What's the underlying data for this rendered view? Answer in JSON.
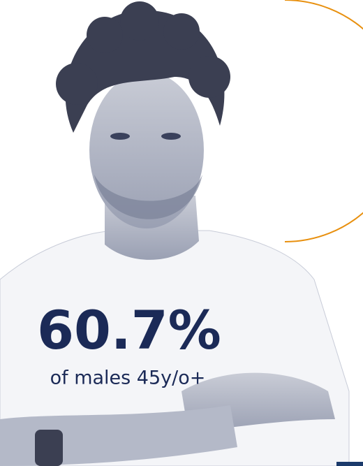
{
  "stat": {
    "value": "60.7%",
    "caption": "of males 45y/o+"
  }
}
